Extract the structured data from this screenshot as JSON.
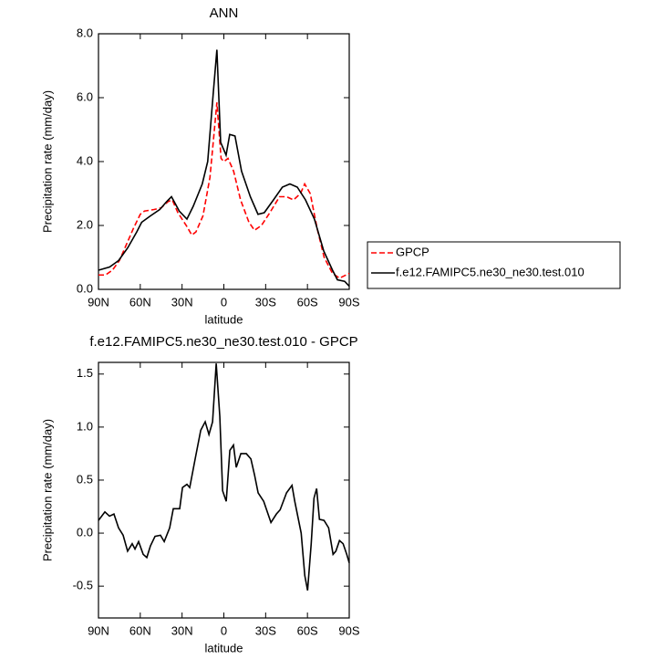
{
  "chart_data": [
    {
      "type": "line",
      "title": "ANN",
      "xlabel": "latitude",
      "ylabel": "Precipitation rate (mm/day)",
      "xlim": [
        90,
        -90
      ],
      "xticks": [
        {
          "value": 90,
          "label": "90N"
        },
        {
          "value": 60,
          "label": "60N"
        },
        {
          "value": 30,
          "label": "30N"
        },
        0,
        {
          "value": -30,
          "label": "30S"
        },
        {
          "value": -60,
          "label": "60S"
        },
        {
          "value": -90,
          "label": "90S"
        }
      ],
      "ylim": [
        0,
        8
      ],
      "yticks": [
        {
          "value": 0,
          "label": "0.0"
        },
        {
          "value": 2,
          "label": "2.0"
        },
        {
          "value": 4,
          "label": "4.0"
        },
        {
          "value": 6,
          "label": "6.0"
        },
        {
          "value": 8,
          "label": "8.0"
        }
      ],
      "legend": "right",
      "series": [
        {
          "name": "GPCP",
          "color": "#ff0000",
          "dash": true,
          "x": [
            90,
            85,
            80,
            75,
            70,
            65,
            60,
            57,
            50,
            45,
            40,
            37,
            33,
            27,
            23,
            20,
            15,
            10,
            7,
            5,
            2,
            0,
            -3,
            -7,
            -12,
            -18,
            -22,
            -27,
            -33,
            -40,
            -45,
            -50,
            -55,
            -58,
            -62,
            -67,
            -72,
            -78,
            -83,
            -90
          ],
          "values": [
            0.45,
            0.45,
            0.6,
            0.9,
            1.4,
            1.9,
            2.35,
            2.45,
            2.5,
            2.55,
            2.75,
            2.8,
            2.4,
            2.0,
            1.7,
            1.8,
            2.3,
            3.5,
            4.9,
            5.85,
            4.1,
            4.0,
            4.1,
            3.7,
            2.8,
            2.1,
            1.85,
            2.0,
            2.4,
            2.9,
            2.9,
            2.8,
            3.0,
            3.3,
            3.0,
            1.9,
            1.0,
            0.5,
            0.35,
            0.5
          ]
        },
        {
          "name": "f.e12.FAMIPC5.ne30_ne30.test.010",
          "color": "#000000",
          "dash": false,
          "x": [
            90,
            82,
            75.6,
            69,
            62.5,
            59,
            52.7,
            46,
            41,
            37.6,
            32,
            26.5,
            22,
            15.5,
            11.6,
            7.5,
            5,
            2.3,
            -1.6,
            -4.2,
            -8,
            -12.7,
            -19,
            -24.5,
            -29,
            -35.6,
            -42,
            -47.4,
            -52.7,
            -58.6,
            -65,
            -71.7,
            -78,
            -81.5,
            -86.7,
            -90
          ],
          "values": [
            0.6,
            0.7,
            0.9,
            1.3,
            1.8,
            2.1,
            2.3,
            2.5,
            2.75,
            2.9,
            2.45,
            2.2,
            2.6,
            3.3,
            4.0,
            6.2,
            7.5,
            4.6,
            4.2,
            4.85,
            4.8,
            3.7,
            2.9,
            2.35,
            2.4,
            2.8,
            3.2,
            3.3,
            3.2,
            2.8,
            2.2,
            1.2,
            0.6,
            0.3,
            0.25,
            0.1
          ]
        }
      ]
    },
    {
      "type": "line",
      "title": "f.e12.FAMIPC5.ne30_ne30.test.010 - GPCP",
      "xlabel": "latitude",
      "ylabel": "Precipitation rate (mm/day)",
      "xlim": [
        90,
        -90
      ],
      "xticks": [
        {
          "value": 90,
          "label": "90N"
        },
        {
          "value": 60,
          "label": "60N"
        },
        {
          "value": 30,
          "label": "30N"
        },
        0,
        {
          "value": -30,
          "label": "30S"
        },
        {
          "value": -60,
          "label": "60S"
        },
        {
          "value": -90,
          "label": "90S"
        }
      ],
      "ylim": [
        -0.8,
        1.61
      ],
      "yticks": [
        -0.5,
        {
          "value": 0,
          "label": "0.0"
        },
        0.5,
        {
          "value": 1,
          "label": "1.0"
        },
        1.5
      ],
      "series": [
        {
          "color": "#000000",
          "dash": false,
          "x": [
            90,
            85.4,
            82.1,
            78.9,
            75.6,
            72.3,
            69.1,
            65.8,
            63.8,
            61.2,
            57.9,
            55.3,
            52.7,
            49.4,
            45.5,
            42.8,
            38.9,
            36.3,
            31.7,
            29.7,
            26.5,
            24.5,
            20.6,
            16.6,
            13.4,
            10.7,
            8.1,
            5.5,
            2.9,
            0.9,
            -1.7,
            -4.3,
            -6.9,
            -8.9,
            -12.2,
            -16.1,
            -19.4,
            -22,
            -24.6,
            -28.6,
            -33.8,
            -37.7,
            -40.4,
            -45,
            -48.9,
            -50.9,
            -55.5,
            -58.1,
            -60.1,
            -62.7,
            -64.7,
            -66.6,
            -68.6,
            -71.9,
            -75.2,
            -78.4,
            -80.4,
            -83,
            -85.6,
            -88.2,
            -90
          ],
          "values": [
            0.12,
            0.2,
            0.16,
            0.18,
            0.05,
            -0.02,
            -0.17,
            -0.1,
            -0.15,
            -0.08,
            -0.2,
            -0.23,
            -0.12,
            -0.03,
            -0.02,
            -0.08,
            0.05,
            0.23,
            0.23,
            0.43,
            0.46,
            0.43,
            0.7,
            0.97,
            1.05,
            0.93,
            1.05,
            1.6,
            1.1,
            0.4,
            0.3,
            0.78,
            0.83,
            0.62,
            0.75,
            0.75,
            0.7,
            0.55,
            0.38,
            0.3,
            0.1,
            0.18,
            0.22,
            0.38,
            0.45,
            0.3,
            0.0,
            -0.4,
            -0.54,
            -0.1,
            0.33,
            0.42,
            0.13,
            0.12,
            0.05,
            -0.2,
            -0.17,
            -0.07,
            -0.1,
            -0.2,
            -0.28
          ]
        }
      ]
    }
  ]
}
